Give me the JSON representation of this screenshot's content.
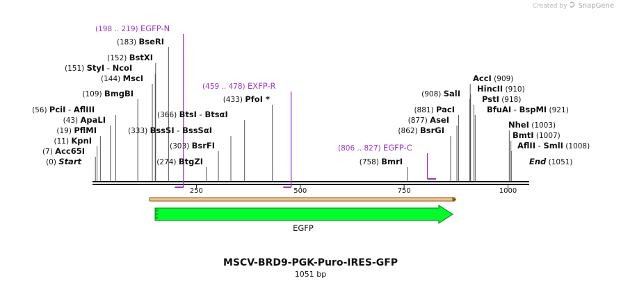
{
  "credit": {
    "prefix": "Created by",
    "brand": "SnapGene"
  },
  "title": "MSCV-BRD9-PGK-Puro-IRES-GFP",
  "length_label": "1051 bp",
  "backbone": {
    "ruler": [
      {
        "pos": 250,
        "label": "250"
      },
      {
        "pos": 500,
        "label": "500"
      },
      {
        "pos": 750,
        "label": "750"
      },
      {
        "pos": 1000,
        "label": "1000"
      }
    ]
  },
  "sites": [
    {
      "pos": 0,
      "num": "(0)",
      "name": "Start",
      "style": "italic"
    },
    {
      "pos": 7,
      "num": "(7)",
      "name": "Acc65I"
    },
    {
      "pos": 11,
      "num": "(11)",
      "name": "KpnI"
    },
    {
      "pos": 19,
      "num": "(19)",
      "name": "PflMI"
    },
    {
      "pos": 43,
      "num": "(43)",
      "name": "ApaLI"
    },
    {
      "pos": 56,
      "num": "(56)",
      "name": "PciI",
      "alt": "AflIII"
    },
    {
      "pos": 109,
      "num": "(109)",
      "name": "BmgBI"
    },
    {
      "pos": 144,
      "num": "(144)",
      "name": "MscI"
    },
    {
      "pos": 151,
      "num": "(151)",
      "name": "StyI",
      "alt": "NcoI"
    },
    {
      "pos": 152,
      "num": "(152)",
      "name": "BstXI"
    },
    {
      "pos": 183,
      "num": "(183)",
      "name": "BseRI"
    },
    {
      "pos": 274,
      "num": "(274)",
      "name": "BtgZI"
    },
    {
      "pos": 303,
      "num": "(303)",
      "name": "BsrFI"
    },
    {
      "pos": 333,
      "num": "(333)",
      "name": "BssSI",
      "alt": "BssSαI"
    },
    {
      "pos": 366,
      "num": "(366)",
      "name": "BtsI",
      "alt": "BtsαI"
    },
    {
      "pos": 433,
      "num": "(433)",
      "name": "PfoI *"
    },
    {
      "pos": 758,
      "num": "(758)",
      "name": "BmrI"
    },
    {
      "pos": 862,
      "num": "(862)",
      "name": "BsrGI"
    },
    {
      "pos": 877,
      "num": "(877)",
      "name": "AseI"
    },
    {
      "pos": 881,
      "num": "(881)",
      "name": "PacI"
    },
    {
      "pos": 908,
      "num": "(908)",
      "name": "SalI"
    },
    {
      "pos": 909,
      "num": "(909)",
      "name": "AccI"
    },
    {
      "pos": 910,
      "num": "(910)",
      "name": "HincII"
    },
    {
      "pos": 918,
      "num": "(918)",
      "name": "PstI"
    },
    {
      "pos": 921,
      "num": "(921)",
      "name": "BfuAI",
      "alt": "BspMI"
    },
    {
      "pos": 1003,
      "num": "(1003)",
      "name": "NheI"
    },
    {
      "pos": 1007,
      "num": "(1007)",
      "name": "BmtI"
    },
    {
      "pos": 1008,
      "num": "(1008)",
      "name": "AflII",
      "alt": "SmlI"
    },
    {
      "pos": 1051,
      "num": "(1051)",
      "name": "End",
      "style": "italic"
    }
  ],
  "primers": [
    {
      "range": "(198 .. 219)",
      "name": "EGFP-N",
      "start": 198,
      "end": 219,
      "direction": "forward"
    },
    {
      "range": "(459 .. 478)",
      "name": "EXFP-R",
      "start": 459,
      "end": 478,
      "direction": "reverse"
    },
    {
      "range": "(806 .. 827)",
      "name": "EGFP-C",
      "start": 806,
      "end": 827,
      "direction": "reverse"
    }
  ],
  "features": [
    {
      "name": "EGFP",
      "start": 157,
      "end": 876,
      "color": "#00ff2a",
      "border": "#0c7a16",
      "orf_color": "#f4c08c",
      "orf_border": "#8a5a10"
    }
  ],
  "colors": {
    "primer": "#9933cc",
    "text": "#111111",
    "line": "#555555"
  }
}
